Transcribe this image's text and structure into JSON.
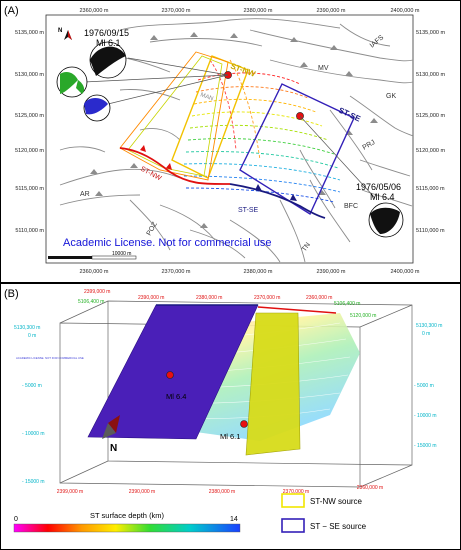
{
  "panel_a": {
    "label": "(A)",
    "x_ticks_top": [
      "2360,000 m",
      "2370,000 m",
      "2380,000 m",
      "2390,000 m",
      "2400,000 m"
    ],
    "x_ticks_bottom": [
      "2360,000 m",
      "2370,000 m",
      "2380,000 m",
      "2390,000 m",
      "2400,000 m"
    ],
    "y_ticks_left": [
      "5135,000 m",
      "5130,000 m",
      "5125,000 m",
      "5120,000 m",
      "5115,000 m",
      "5110,000 m"
    ],
    "y_ticks_right": [
      "5135,000 m",
      "5130,000 m",
      "5125,000 m",
      "5120,000 m",
      "5115,000 m",
      "5110,000 m"
    ],
    "north_label": "N",
    "event_1976_09": {
      "date": "1976/09/15",
      "magnitude": "Ml 6.1"
    },
    "event_1976_05": {
      "date": "1976/05/06",
      "magnitude": "Ml 6.4"
    },
    "fault_labels": {
      "st_nw_top": "ST-NW",
      "st_se_top": "ST-SE",
      "st_nw_trace": "ST-NW",
      "st_se_trace": "ST-SE",
      "mv": "MV",
      "iafs": "IAFS",
      "gk": "GK",
      "prj": "PRJ",
      "bfc": "BFC",
      "ar": "AR",
      "poz": "POZ",
      "tn": "TN",
      "man": "MAN"
    },
    "license": "Academic License. Not for commercial use",
    "scale_bar": "10000 m",
    "colors": {
      "license": "#1515d8",
      "st_nw_box": "#f2c200",
      "st_se_box": "#3320b8",
      "epicenter": "#e81010",
      "fault": "#888888"
    }
  },
  "panel_b": {
    "label": "(B)",
    "top_ticks": [
      "2399,000 m",
      "2390,000 m",
      "2380,000 m",
      "2370,000 m",
      "2360,000 m"
    ],
    "top_right_tick": "5106,400 m",
    "top_left_tick": "5106,400 m",
    "right_tick_1": "5120,000 m",
    "left_depth_ticks": [
      "5130,300 m",
      "0 m"
    ],
    "right_depth_ticks": [
      "5130,300 m",
      "0 m",
      "- 5000 m",
      "- 10000 m",
      "- 15000 m"
    ],
    "left_depth_ticks_2": [
      "- 5000 m",
      "- 10000 m",
      "- 15000 m"
    ],
    "bottom_ticks": [
      "2399,000 m",
      "2390,000 m",
      "2380,000 m",
      "2370,000 m",
      "2360,000 m"
    ],
    "event_labels": {
      "ml64": "Ml 6.4",
      "ml61": "Ml 6.1"
    },
    "north_label": "N",
    "tiny_license": "ACADEMIC LICENSE. NOT FOR COMMERCIAL USE",
    "legend": {
      "nw_label": "ST-NW source",
      "se_label": "ST − SE source",
      "scale_title": "ST surface depth (km)",
      "scale_min": "0",
      "scale_max": "14"
    }
  }
}
